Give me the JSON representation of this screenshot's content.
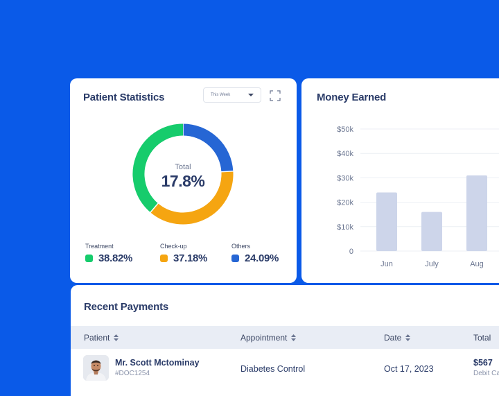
{
  "patient_stats": {
    "title": "Patient Statistics",
    "period": "This Week",
    "total_label": "Total",
    "total_value": "17.8%",
    "legend": [
      {
        "label": "Treatment",
        "value": "38.82%",
        "color": "#16cc6c",
        "share": 38.82
      },
      {
        "label": "Check-up",
        "value": "37.18%",
        "color": "#f5a511",
        "share": 37.18
      },
      {
        "label": "Others",
        "value": "24.09%",
        "color": "#2666d4",
        "share": 24.09
      }
    ]
  },
  "money_earned": {
    "title": "Money Earned",
    "chart_data": {
      "type": "bar",
      "categories": [
        "Jun",
        "July",
        "Aug"
      ],
      "values": [
        24000,
        16000,
        31000
      ],
      "yticks": [
        "$50k",
        "$40k",
        "$30k",
        "$20k",
        "$10k",
        "0"
      ],
      "ylim": [
        0,
        50000
      ],
      "grid": true,
      "color": "#cdd5ea"
    }
  },
  "recent_payments": {
    "title": "Recent Payments",
    "columns": [
      "Patient",
      "Appointment",
      "Date",
      "Total"
    ],
    "rows": [
      {
        "patient_name": "Mr. Scott Mctominay",
        "patient_id": "#DOC1254",
        "appointment": "Diabetes Control",
        "date": "Oct 17, 2023",
        "total": "$567",
        "method": "Debit Card"
      }
    ]
  }
}
